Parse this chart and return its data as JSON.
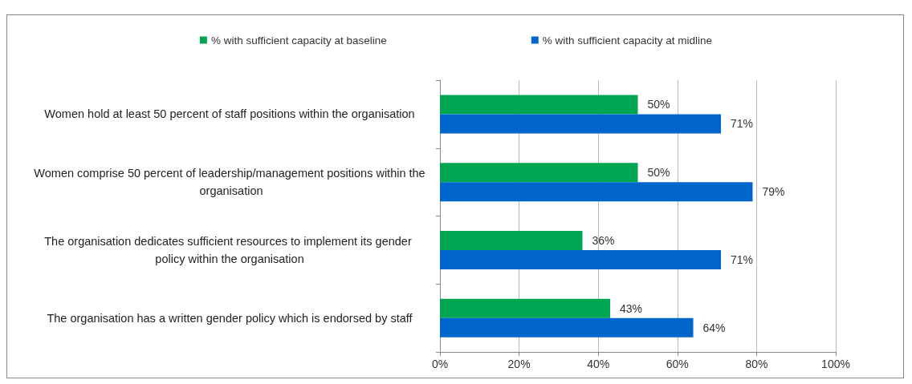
{
  "chart_data": {
    "type": "bar",
    "orientation": "horizontal",
    "categories": [
      "Women hold at least 50 percent of staff positions within the organisation",
      "Women comprise 50 percent of leadership/management positions within the organisation",
      "The organisation dedicates sufficient resources to implement its gender policy within the organisation",
      "The organisation has a written gender policy which is endorsed by staff"
    ],
    "series": [
      {
        "name": "% with sufficient capacity at baseline",
        "color": "#00a651",
        "values": [
          50,
          50,
          36,
          43
        ],
        "value_labels": [
          "50%",
          "50%",
          "36%",
          "43%"
        ]
      },
      {
        "name": "% with sufficient capacity at midline",
        "color": "#0066cc",
        "values": [
          71,
          79,
          71,
          64
        ],
        "value_labels": [
          "71%",
          "79%",
          "71%",
          "64%"
        ]
      }
    ],
    "xlim": [
      0,
      100
    ],
    "xticks": [
      {
        "value": 0,
        "label": "0%"
      },
      {
        "value": 20,
        "label": "20%"
      },
      {
        "value": 40,
        "label": "40%"
      },
      {
        "value": 60,
        "label": "60%"
      },
      {
        "value": 80,
        "label": "80%"
      },
      {
        "value": 100,
        "label": "100%"
      }
    ],
    "grid": "x",
    "legend": "top"
  }
}
